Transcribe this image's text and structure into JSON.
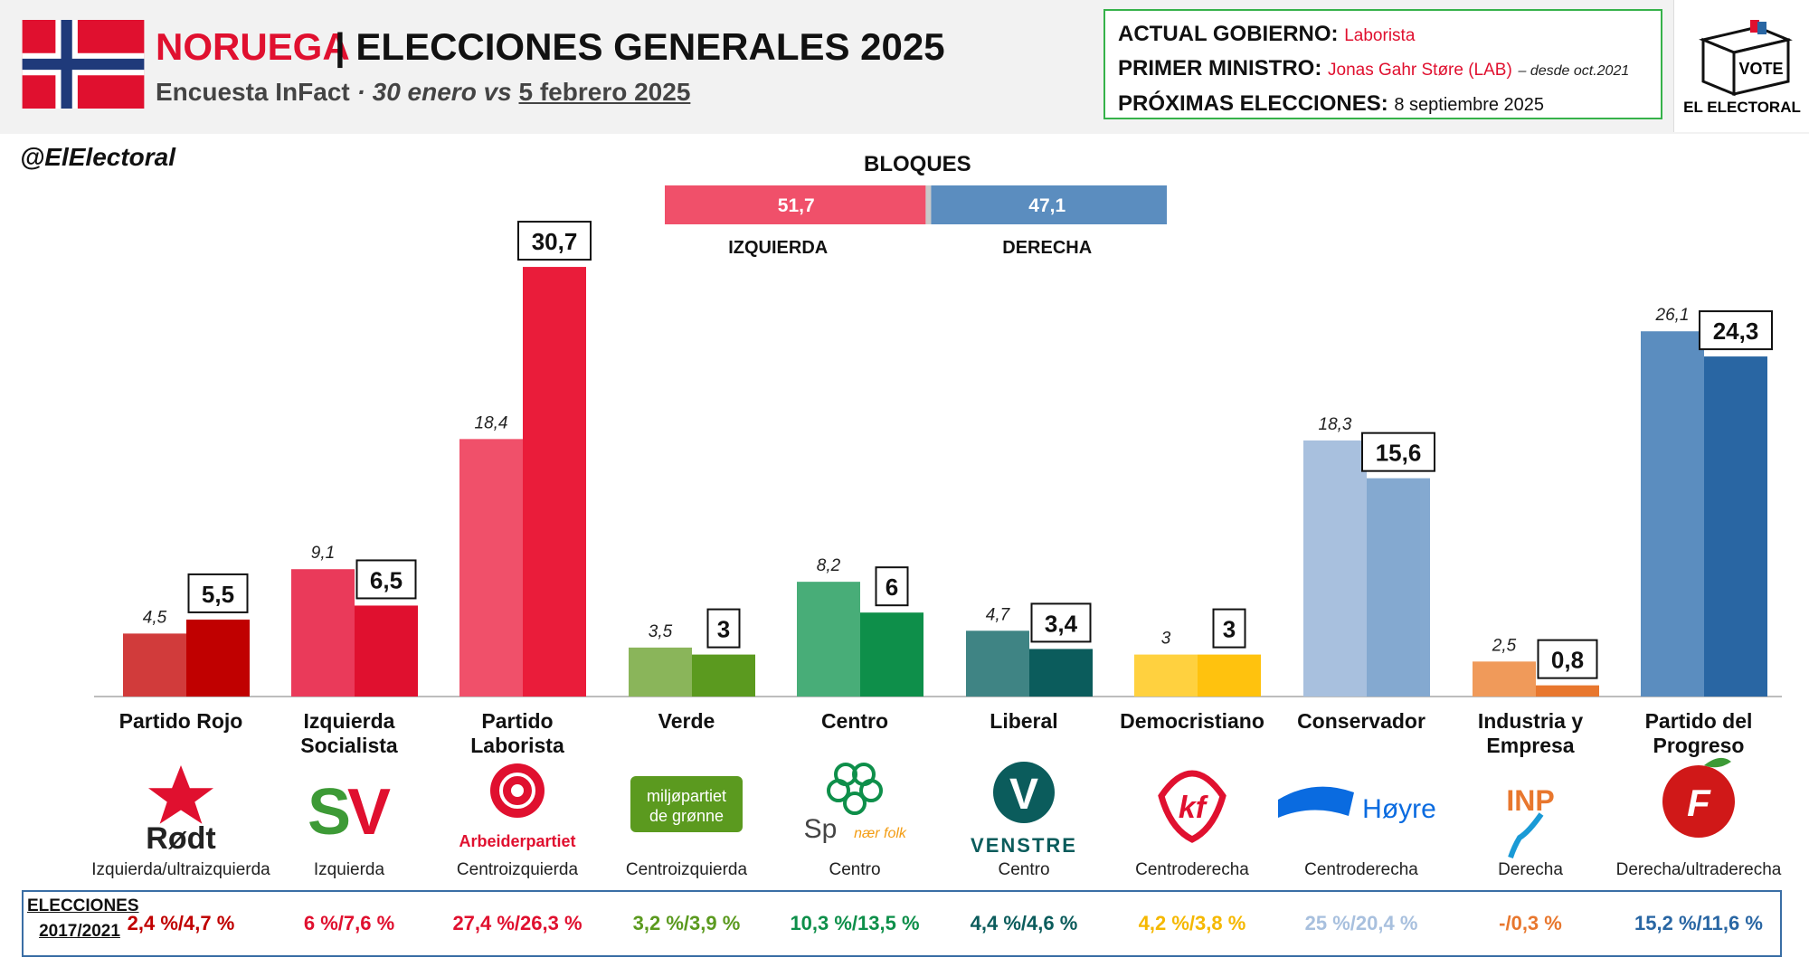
{
  "header": {
    "country": "NORUEGA",
    "title": "| ELECCIONES GENERALES 2025",
    "subtitle_pollster": "Encuesta InFact",
    "subtitle_sep": " · ",
    "subtitle_dates_a": "30 enero vs ",
    "subtitle_dates_b": "5 febrero 2025",
    "handle": "@ElElectoral"
  },
  "info": {
    "gov_label": "ACTUAL GOBIERNO:",
    "gov_value": "Laborista",
    "pm_label": "PRIMER MINISTRO:",
    "pm_value": "Jonas Gahr Støre (LAB)",
    "pm_note": "– desde oct.2021",
    "next_label": "PRÓXIMAS ELECCIONES:",
    "next_value": "8 septiembre 2025"
  },
  "brand": {
    "vote": "VOTE",
    "name": "EL ELECTORAL"
  },
  "blocs": {
    "title": "BLOQUES",
    "left": {
      "label": "IZQUIERDA",
      "value": 51.7,
      "display": "51,7",
      "color": "#f0506a"
    },
    "right": {
      "label": "DERECHA",
      "value": 47.1,
      "display": "47,1",
      "color": "#5b8dbf"
    }
  },
  "elections_label_1": "ELECCIONES",
  "elections_label_2": "2017/2021",
  "chart_data": {
    "type": "bar",
    "series": [
      {
        "name": "30 enero",
        "values": [
          4.5,
          9.1,
          18.4,
          3.5,
          8.2,
          4.7,
          3,
          18.3,
          2.5,
          26.1
        ]
      },
      {
        "name": "5 febrero 2025",
        "values": [
          5.5,
          6.5,
          30.7,
          3,
          6,
          3.4,
          3,
          15.6,
          0.8,
          24.3
        ]
      }
    ],
    "parties": [
      {
        "name": "Partido Rojo",
        "ideology": "Izquierda/ultraizquierda",
        "prev_label": "4,5",
        "new_label": "5,5",
        "elections": "2,4 %/4,7 %",
        "color_prev": "#d13b3b",
        "color_new": "#c00000",
        "elec_color": "#c00000",
        "logo": "rodt-logo"
      },
      {
        "name": "Izquierda Socialista",
        "ideology": "Izquierda",
        "prev_label": "9,1",
        "new_label": "6,5",
        "elections": "6 %/7,6 %",
        "color_prev": "#ea3a5a",
        "color_new": "#e0102f",
        "elec_color": "#e0102f",
        "logo": "sv-logo"
      },
      {
        "name": "Partido Laborista",
        "ideology": "Centroizquierda",
        "prev_label": "18,4",
        "new_label": "30,7",
        "elections": "27,4 %/26,3 %",
        "color_prev": "#f0506a",
        "color_new": "#ea1c3a",
        "elec_color": "#e0102f",
        "logo": "arbeiderpartiet-logo"
      },
      {
        "name": "Verde",
        "ideology": "Centroizquierda",
        "prev_label": "3,5",
        "new_label": "3",
        "elections": "3,2 %/3,9 %",
        "color_prev": "#8ab55a",
        "color_new": "#5b9a1f",
        "elec_color": "#5b9a1f",
        "logo": "mdg-logo"
      },
      {
        "name": "Centro",
        "ideology": "Centro",
        "prev_label": "8,2",
        "new_label": "6",
        "elections": "10,3 %/13,5 %",
        "color_prev": "#48ad78",
        "color_new": "#0e8f4a",
        "elec_color": "#0e8f4a",
        "logo": "sp-logo"
      },
      {
        "name": "Liberal",
        "ideology": "Centro",
        "prev_label": "4,7",
        "new_label": "3,4",
        "elections": "4,4 %/4,6 %",
        "color_prev": "#3f8484",
        "color_new": "#0b5c5c",
        "elec_color": "#0b5c5c",
        "logo": "venstre-logo"
      },
      {
        "name": "Democristiano",
        "ideology": "Centroderecha",
        "prev_label": "3",
        "new_label": "3",
        "elections": "4,2 %/3,8 %",
        "color_prev": "#ffd13f",
        "color_new": "#ffc20e",
        "elec_color": "#f5b800",
        "logo": "krf-logo"
      },
      {
        "name": "Conservador",
        "ideology": "Centroderecha",
        "prev_label": "18,3",
        "new_label": "15,6",
        "elections": "25 %/20,4 %",
        "color_prev": "#a8c0de",
        "color_new": "#84a9d0",
        "elec_color": "#a8c0de",
        "logo": "hoyre-logo"
      },
      {
        "name": "Industria y Empresa",
        "ideology": "Derecha",
        "prev_label": "2,5",
        "new_label": "0,8",
        "elections": "-/0,3 %",
        "color_prev": "#f09a5a",
        "color_new": "#e8772e",
        "elec_color": "#e8772e",
        "logo": "inp-logo"
      },
      {
        "name": "Partido del Progreso",
        "ideology": "Derecha/ultraderecha",
        "prev_label": "26,1",
        "new_label": "24,3",
        "elections": "15,2 %/11,6 %",
        "color_prev": "#5b8dbf",
        "color_new": "#2966a3",
        "elec_color": "#2966a3",
        "logo": "frp-logo"
      }
    ],
    "logo_text": {
      "rodt": "Rødt",
      "sv": "SV",
      "ap": "Arbeiderpartiet",
      "mdg_1": "miljøpartiet",
      "mdg_2": "de grønne",
      "sp": "Sp",
      "sp_tag": "nær folk",
      "venstre": "VENSTRE",
      "hoyre": "Høyre",
      "inp": "INP"
    }
  }
}
